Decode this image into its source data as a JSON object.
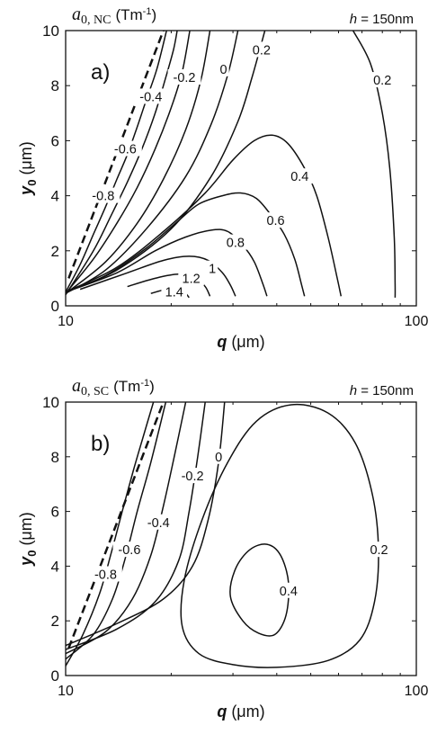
{
  "chart_data": [
    {
      "type": "contour",
      "panel_label": "a)",
      "title_symbol": "a",
      "title_sub": "0, NC",
      "title_unit": "(Tm",
      "title_unit_sup": "-1",
      "title_unit_close": ")",
      "annotation_h": "h",
      "annotation_rest": " = 150nm",
      "xlabel_var": "q",
      "xlabel_unit": " (μm)",
      "ylabel_var": "y",
      "ylabel_sub": "0",
      "ylabel_unit": " (μm)",
      "x_scale": "log",
      "xlim": [
        10,
        100
      ],
      "ylim": [
        0,
        10
      ],
      "x_ticks": [
        "10",
        "100"
      ],
      "y_ticks": [
        "0",
        "2",
        "4",
        "6",
        "8",
        "10"
      ],
      "contour_levels": [
        "-0.8",
        "-0.6",
        "-0.4",
        "-0.2",
        "0",
        "0.2",
        "0.2",
        "0.4",
        "0.6",
        "0.8",
        "1",
        "1.2",
        "1.4"
      ],
      "dashed_boundary": [
        [
          10.2,
          1.0
        ],
        [
          19.0,
          10.0
        ]
      ],
      "contours": [
        {
          "level": "-0.8",
          "points": [
            [
              10,
              0.5
            ],
            [
              11,
              1.5
            ],
            [
              12,
              2.6
            ],
            [
              13,
              3.6
            ],
            [
              14,
              4.6
            ],
            [
              15,
              5.5
            ],
            [
              16,
              6.5
            ],
            [
              17,
              7.5
            ],
            [
              18.2,
              8.6
            ],
            [
              19.4,
              10
            ]
          ],
          "label_at": [
            12.8,
            4.0
          ]
        },
        {
          "level": "-0.6",
          "points": [
            [
              10,
              0.4
            ],
            [
              12,
              2.0
            ],
            [
              13.5,
              3.3
            ],
            [
              15,
              4.5
            ],
            [
              16.5,
              5.7
            ],
            [
              18,
              7.0
            ],
            [
              19.2,
              8.2
            ],
            [
              20.3,
              9.3
            ],
            [
              20.8,
              10
            ]
          ],
          "label_at": [
            14.8,
            5.7
          ]
        },
        {
          "level": "-0.4",
          "points": [
            [
              10,
              0.45
            ],
            [
              12,
              1.7
            ],
            [
              14,
              3.0
            ],
            [
              16,
              4.3
            ],
            [
              18,
              5.7
            ],
            [
              20,
              7.2
            ],
            [
              21.5,
              8.5
            ],
            [
              22.6,
              10
            ]
          ],
          "label_at": [
            17.5,
            7.6
          ]
        },
        {
          "level": "-0.2",
          "points": [
            [
              10,
              0.45
            ],
            [
              13,
              1.6
            ],
            [
              16,
              3.0
            ],
            [
              19,
              4.6
            ],
            [
              22,
              6.4
            ],
            [
              24.3,
              8.2
            ],
            [
              25.8,
              10
            ]
          ],
          "label_at": [
            21.8,
            8.3
          ]
        },
        {
          "level": "0",
          "points": [
            [
              10,
              0.45
            ],
            [
              13,
              1.3
            ],
            [
              17,
              2.8
            ],
            [
              22,
              4.7
            ],
            [
              26,
              6.6
            ],
            [
              29,
              8.4
            ],
            [
              31,
              10
            ]
          ],
          "label_at": [
            28.2,
            8.6
          ]
        },
        {
          "level": "0.2",
          "points": [
            [
              10,
              0.5
            ],
            [
              14,
              1.3
            ],
            [
              20,
              2.8
            ],
            [
              26,
              4.7
            ],
            [
              31,
              6.7
            ],
            [
              34,
              8.3
            ],
            [
              37,
              10
            ]
          ],
          "label_at": [
            36.2,
            9.3
          ]
        },
        {
          "level": "0.2",
          "points": [
            [
              66,
              10
            ],
            [
              74,
              8.8
            ],
            [
              80,
              7.0
            ],
            [
              84,
              5.0
            ],
            [
              86.5,
              2.5
            ],
            [
              87,
              0.8
            ],
            [
              87,
              0.3
            ]
          ],
          "label_at": [
            80,
            8.2
          ]
        },
        {
          "level": "0.4",
          "points": [
            [
              10,
              0.5
            ],
            [
              14,
              1.4
            ],
            [
              19,
              2.7
            ],
            [
              25,
              4.1
            ],
            [
              30,
              5.3
            ],
            [
              34.5,
              6.0
            ],
            [
              38.8,
              6.2
            ],
            [
              43,
              5.9
            ],
            [
              48,
              5.0
            ],
            [
              52,
              4.0
            ],
            [
              56,
              2.5
            ],
            [
              59.5,
              1.0
            ],
            [
              61,
              0.35
            ]
          ],
          "label_at": [
            46.5,
            4.7
          ]
        },
        {
          "level": "0.6",
          "points": [
            [
              10,
              0.5
            ],
            [
              13,
              1.1
            ],
            [
              17,
              2.1
            ],
            [
              21,
              3.1
            ],
            [
              24,
              3.7
            ],
            [
              28,
              4.0
            ],
            [
              31.5,
              4.1
            ],
            [
              35,
              3.9
            ],
            [
              38.5,
              3.3
            ],
            [
              42,
              2.6
            ],
            [
              45,
              1.7
            ],
            [
              47,
              0.8
            ],
            [
              48,
              0.35
            ]
          ],
          "label_at": [
            39.7,
            3.1
          ]
        },
        {
          "level": "0.8",
          "points": [
            [
              10,
              0.5
            ],
            [
              14,
              1.2
            ],
            [
              18,
              2.0
            ],
            [
              22,
              2.5
            ],
            [
              26,
              2.75
            ],
            [
              29,
              2.7
            ],
            [
              32,
              2.2
            ],
            [
              34.5,
              1.6
            ],
            [
              36.5,
              0.8
            ],
            [
              37.5,
              0.35
            ]
          ],
          "label_at": [
            30.5,
            2.3
          ]
        },
        {
          "level": "1",
          "points": [
            [
              11,
              0.6
            ],
            [
              15,
              1.2
            ],
            [
              19,
              1.65
            ],
            [
              22.5,
              1.8
            ],
            [
              25.5,
              1.65
            ],
            [
              28,
              1.2
            ],
            [
              29.5,
              0.75
            ],
            [
              30.5,
              0.35
            ]
          ],
          "label_at": [
            26.2,
            1.35
          ]
        },
        {
          "level": "1.2",
          "points": [
            [
              15,
              0.7
            ],
            [
              18,
              1.0
            ],
            [
              21,
              1.15
            ],
            [
              23.5,
              1.0
            ],
            [
              25,
              0.7
            ],
            [
              25.8,
              0.35
            ]
          ],
          "label_at": [
            22.8,
            1.0
          ]
        },
        {
          "level": "1.4",
          "points": [
            [
              17.5,
              0.45
            ],
            [
              19.5,
              0.6
            ],
            [
              21.5,
              0.55
            ],
            [
              22.5,
              0.3
            ]
          ],
          "label_at": [
            20.4,
            0.5
          ]
        }
      ]
    },
    {
      "type": "contour",
      "panel_label": "b)",
      "title_symbol": "a",
      "title_sub": "0, SC",
      "title_unit": "(Tm",
      "title_unit_sup": "-1",
      "title_unit_close": ")",
      "annotation_h": "h",
      "annotation_rest": " = 150nm",
      "xlabel_var": "q",
      "xlabel_unit": " (μm)",
      "ylabel_var": "y",
      "ylabel_sub": "0",
      "ylabel_unit": " (μm)",
      "x_scale": "log",
      "xlim": [
        10,
        100
      ],
      "ylim": [
        0,
        10
      ],
      "x_ticks": [
        "10",
        "100"
      ],
      "y_ticks": [
        "0",
        "2",
        "4",
        "6",
        "8",
        "10"
      ],
      "contour_levels": [
        "-0.8",
        "-0.6",
        "-0.4",
        "-0.2",
        "0",
        "0.2",
        "0.4"
      ],
      "dashed_boundary": [
        [
          10.2,
          1.0
        ],
        [
          19.0,
          10.0
        ]
      ],
      "contours": [
        {
          "level": "-0.8",
          "points": [
            [
              10,
              0.35
            ],
            [
              11.2,
              1.5
            ],
            [
              12.5,
              3.0
            ],
            [
              13.5,
              4.5
            ],
            [
              14.5,
              6.0
            ],
            [
              15.6,
              7.5
            ],
            [
              16.7,
              8.8
            ],
            [
              17.8,
              10
            ]
          ],
          "label_at": [
            13.0,
            3.7
          ]
        },
        {
          "level": "-0.6",
          "points": [
            [
              10,
              0.6
            ],
            [
              12,
              1.5
            ],
            [
              13.6,
              2.8
            ],
            [
              14.8,
              4.3
            ],
            [
              16,
              6.0
            ],
            [
              17.5,
              7.8
            ],
            [
              19.3,
              10
            ]
          ],
          "label_at": [
            15.2,
            4.6
          ]
        },
        {
          "level": "-0.4",
          "points": [
            [
              10,
              0.8
            ],
            [
              13,
              1.6
            ],
            [
              15.5,
              2.8
            ],
            [
              17.5,
              4.4
            ],
            [
              19,
              6.2
            ],
            [
              20.4,
              8.0
            ],
            [
              22,
              10
            ]
          ],
          "label_at": [
            18.4,
            5.6
          ]
        },
        {
          "level": "-0.2",
          "points": [
            [
              10,
              0.95
            ],
            [
              14,
              1.7
            ],
            [
              18,
              2.7
            ],
            [
              21,
              4.2
            ],
            [
              22.5,
              6.0
            ],
            [
              23.8,
              8.0
            ],
            [
              25,
              10
            ]
          ],
          "label_at": [
            23.0,
            7.3
          ]
        },
        {
          "level": "0",
          "points": [
            [
              10,
              1.1
            ],
            [
              14,
              1.9
            ],
            [
              19,
              2.8
            ],
            [
              23,
              4.0
            ],
            [
              25.5,
              5.7
            ],
            [
              27.3,
              7.8
            ],
            [
              28.4,
              10
            ]
          ],
          "label_at": [
            27.3,
            8.0
          ]
        },
        {
          "level": "0.2",
          "closed": true,
          "points": [
            [
              24,
              0.8
            ],
            [
              21.5,
              1.8
            ],
            [
              21.8,
              3.5
            ],
            [
              24.5,
              5.7
            ],
            [
              29,
              7.8
            ],
            [
              35,
              9.3
            ],
            [
              44,
              9.9
            ],
            [
              56,
              9.6
            ],
            [
              67,
              8.5
            ],
            [
              75,
              6.6
            ],
            [
              78,
              4.6
            ],
            [
              76,
              2.7
            ],
            [
              69,
              1.3
            ],
            [
              56,
              0.55
            ],
            [
              40,
              0.3
            ],
            [
              30,
              0.4
            ]
          ],
          "label_at": [
            78.3,
            4.6
          ]
        },
        {
          "level": "0.4",
          "closed": true,
          "points": [
            [
              32,
              2.0
            ],
            [
              29.5,
              2.9
            ],
            [
              30.5,
              3.9
            ],
            [
              33.5,
              4.6
            ],
            [
              37.5,
              4.8
            ],
            [
              41,
              4.4
            ],
            [
              43.2,
              3.4
            ],
            [
              42.5,
              2.2
            ],
            [
              39.5,
              1.5
            ],
            [
              35.5,
              1.55
            ]
          ],
          "label_at": [
            43.2,
            3.1
          ]
        }
      ]
    }
  ]
}
